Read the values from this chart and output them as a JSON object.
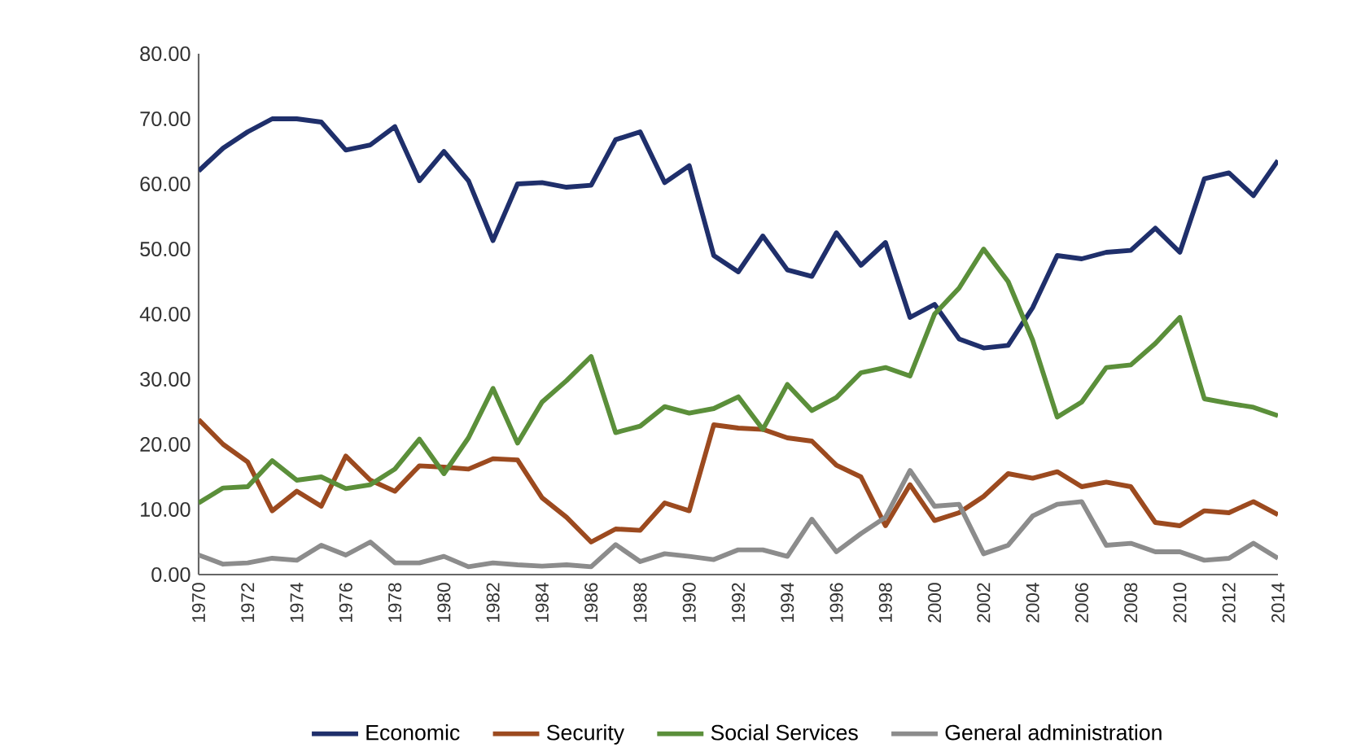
{
  "chart_data": {
    "type": "line",
    "x": [
      1970,
      1971,
      1972,
      1973,
      1974,
      1975,
      1976,
      1977,
      1978,
      1979,
      1980,
      1981,
      1982,
      1983,
      1984,
      1985,
      1986,
      1987,
      1988,
      1989,
      1990,
      1991,
      1992,
      1993,
      1994,
      1995,
      1996,
      1997,
      1998,
      1999,
      2000,
      2001,
      2002,
      2003,
      2004,
      2005,
      2006,
      2007,
      2008,
      2009,
      2010,
      2011,
      2012,
      2013,
      2014
    ],
    "series": [
      {
        "name": "Economic",
        "color": "#1f2f6b",
        "values": [
          62,
          65.5,
          68,
          70,
          70,
          69.5,
          65.2,
          66,
          68.8,
          60.5,
          65,
          60.5,
          51.3,
          60,
          60.2,
          59.5,
          59.8,
          66.8,
          68,
          60.2,
          62.8,
          49,
          46.5,
          52,
          46.8,
          45.8,
          52.5,
          47.5,
          51,
          39.5,
          41.5,
          36.2,
          34.8,
          35.2,
          41,
          49,
          48.5,
          49.5,
          49.8,
          53.2,
          49.5,
          60.8,
          61.7,
          58.2,
          63.6
        ]
      },
      {
        "name": "Security",
        "color": "#9c4a1f",
        "values": [
          23.8,
          20,
          17.3,
          9.8,
          12.8,
          10.5,
          18.2,
          14.5,
          12.8,
          16.7,
          16.5,
          16.2,
          17.8,
          17.6,
          11.8,
          8.8,
          5,
          7,
          6.8,
          11,
          9.8,
          23,
          22.5,
          22.3,
          21,
          20.5,
          16.8,
          15,
          7.5,
          13.8,
          8.3,
          9.5,
          12,
          15.5,
          14.8,
          15.8,
          13.5,
          14.2,
          13.5,
          8,
          7.5,
          9.8,
          9.5,
          11.2,
          9.2
        ]
      },
      {
        "name": "Social Services",
        "color": "#5b8f3a",
        "values": [
          11,
          13.3,
          13.5,
          17.5,
          14.5,
          15,
          13.2,
          13.8,
          16.2,
          20.8,
          15.5,
          21,
          28.6,
          20.2,
          26.5,
          29.8,
          33.5,
          21.8,
          22.8,
          25.8,
          24.8,
          25.5,
          27.3,
          22.3,
          29.2,
          25.2,
          27.2,
          31,
          31.8,
          30.5,
          40,
          44,
          50,
          45,
          36,
          24.2,
          26.5,
          31.8,
          32.2,
          35.5,
          39.5,
          27,
          26.3,
          25.7,
          24.4
        ]
      },
      {
        "name": "General administration",
        "color": "#8c8c8c",
        "values": [
          3,
          1.6,
          1.8,
          2.5,
          2.2,
          4.5,
          3,
          5,
          1.8,
          1.8,
          2.8,
          1.2,
          1.8,
          1.5,
          1.3,
          1.5,
          1.2,
          4.6,
          2,
          3.2,
          2.8,
          2.3,
          3.8,
          3.8,
          2.8,
          8.5,
          3.5,
          6.3,
          8.8,
          16,
          10.5,
          10.8,
          3.2,
          4.5,
          9,
          10.8,
          11.2,
          4.5,
          4.8,
          3.5,
          3.5,
          2.2,
          2.5,
          4.8,
          2.5
        ]
      }
    ],
    "xlim": [
      1970,
      2014
    ],
    "xticks": [
      1970,
      1972,
      1974,
      1976,
      1978,
      1980,
      1982,
      1984,
      1986,
      1988,
      1990,
      1992,
      1994,
      1996,
      1998,
      2000,
      2002,
      2004,
      2006,
      2008,
      2010,
      2012,
      2014
    ],
    "ylim": [
      0,
      80
    ],
    "yticks": [
      {
        "value": 0,
        "label": "0.00"
      },
      {
        "value": 10,
        "label": "10.00"
      },
      {
        "value": 20,
        "label": "20.00"
      },
      {
        "value": 30,
        "label": "30.00"
      },
      {
        "value": 40,
        "label": "40.00"
      },
      {
        "value": 50,
        "label": "50.00"
      },
      {
        "value": 60,
        "label": "60.00"
      },
      {
        "value": 70,
        "label": "70.00"
      },
      {
        "value": 80,
        "label": "80.00"
      }
    ],
    "grid": false,
    "legend": "bottom",
    "marker": "none",
    "line_style": "solid"
  }
}
